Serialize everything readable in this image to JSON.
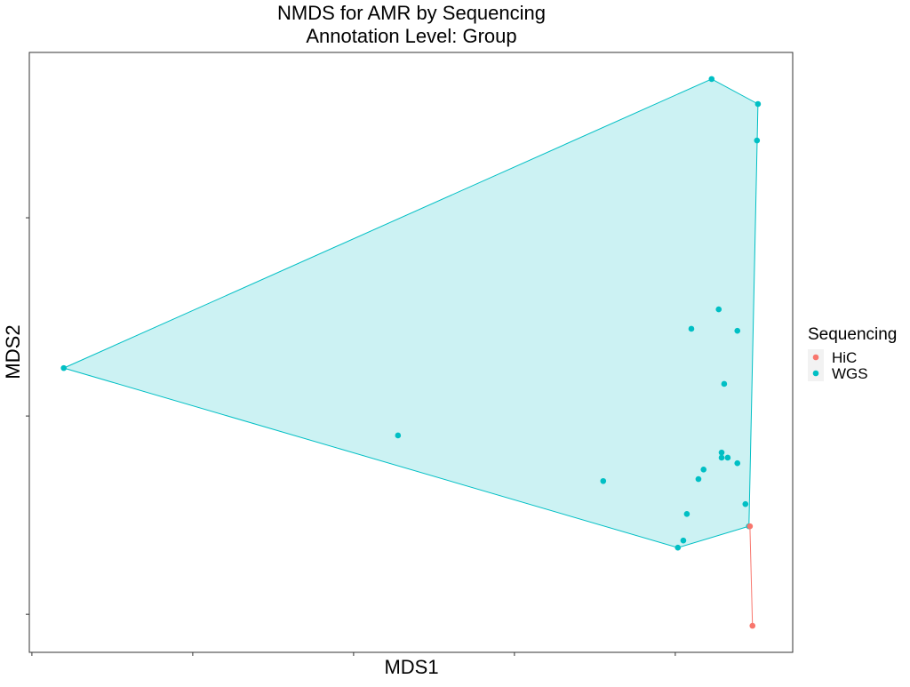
{
  "chart_data": {
    "type": "scatter",
    "title": "NMDS for AMR by Sequencing",
    "subtitle": "Annotation Level: Group",
    "x_label": "MDS1",
    "y_label": "MDS2",
    "legend_title": "Sequencing",
    "hull": true,
    "series": [
      {
        "name": "HiC",
        "color": "#F8766D",
        "x": [
          0.732,
          0.74
        ],
        "y": [
          -0.278,
          -0.529
        ]
      },
      {
        "name": "WGS",
        "color": "#00BFC4",
        "x": [
          0.613,
          0.757,
          0.754,
          -1.401,
          0.635,
          0.55,
          0.693,
          0.652,
          -0.362,
          0.644,
          0.644,
          0.663,
          0.693,
          0.588,
          0.572,
          0.276,
          0.718,
          0.536,
          0.525,
          0.508,
          0.729
        ],
        "y": [
          0.85,
          0.787,
          0.695,
          0.121,
          0.269,
          0.22,
          0.215,
          0.081,
          -0.049,
          -0.092,
          -0.105,
          -0.105,
          -0.119,
          -0.135,
          -0.159,
          -0.164,
          -0.222,
          -0.247,
          -0.314,
          -0.332,
          -0.278
        ]
      }
    ],
    "xlim": [
      -1.508,
      0.865
    ],
    "ylim": [
      -0.596,
      0.917
    ],
    "xticks": [
      -1.5,
      -1.0,
      -0.5,
      0,
      0.5
    ],
    "yticks": [
      -0.5,
      0,
      0.5
    ]
  }
}
